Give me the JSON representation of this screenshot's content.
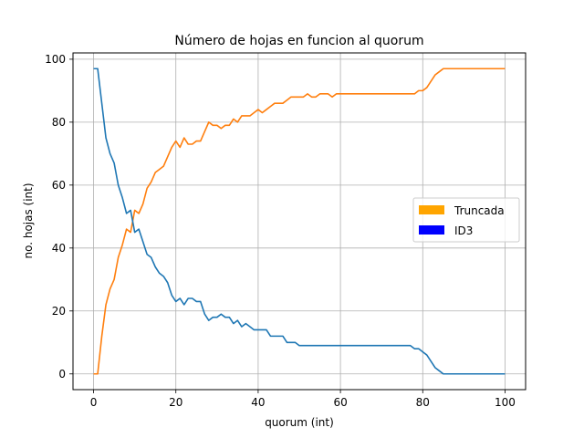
{
  "chart_data": {
    "type": "line",
    "title": "Número de hojas en funcion al quorum",
    "xlabel": "quorum (int)",
    "ylabel": "no. hojas (int)",
    "xlim": [
      -5,
      105
    ],
    "ylim": [
      -5,
      102
    ],
    "xticks": [
      0,
      20,
      40,
      60,
      80,
      100
    ],
    "yticks": [
      0,
      20,
      40,
      60,
      80,
      100
    ],
    "grid": true,
    "legend_position": "center-right",
    "legend": [
      {
        "label": "Truncada",
        "color": "#FFA500"
      },
      {
        "label": "ID3",
        "color": "#0000FF"
      }
    ],
    "x": [
      0,
      1,
      2,
      3,
      4,
      5,
      6,
      7,
      8,
      9,
      10,
      11,
      12,
      13,
      14,
      15,
      16,
      17,
      18,
      19,
      20,
      21,
      22,
      23,
      24,
      25,
      26,
      27,
      28,
      29,
      30,
      31,
      32,
      33,
      34,
      35,
      36,
      37,
      38,
      39,
      40,
      41,
      42,
      43,
      44,
      45,
      46,
      47,
      48,
      49,
      50,
      51,
      52,
      53,
      54,
      55,
      56,
      57,
      58,
      59,
      60,
      61,
      62,
      63,
      64,
      65,
      66,
      67,
      68,
      69,
      70,
      71,
      72,
      73,
      74,
      75,
      76,
      77,
      78,
      79,
      80,
      81,
      82,
      83,
      84,
      85,
      86,
      87,
      88,
      89,
      90,
      91,
      92,
      93,
      94,
      95,
      96,
      97,
      98,
      99,
      100
    ],
    "series": [
      {
        "color": "#ff7f0e",
        "values": [
          0,
          0,
          12,
          22,
          27,
          30,
          37,
          41,
          46,
          45,
          52,
          51,
          54,
          59,
          61,
          64,
          65,
          66,
          69,
          72,
          74,
          72,
          75,
          73,
          73,
          74,
          74,
          77,
          80,
          79,
          79,
          78,
          79,
          79,
          81,
          80,
          82,
          82,
          82,
          83,
          84,
          83,
          84,
          85,
          86,
          86,
          86,
          87,
          88,
          88,
          88,
          88,
          89,
          88,
          88,
          89,
          89,
          89,
          88,
          89,
          89,
          89,
          89,
          89,
          89,
          89,
          89,
          89,
          89,
          89,
          89,
          89,
          89,
          89,
          89,
          89,
          89,
          89,
          89,
          90,
          90,
          91,
          93,
          95,
          96,
          97,
          97,
          97,
          97,
          97,
          97,
          97,
          97,
          97,
          97,
          97,
          97,
          97,
          97,
          97,
          97
        ]
      },
      {
        "color": "#1f77b4",
        "values": [
          97,
          97,
          86,
          75,
          70,
          67,
          60,
          56,
          51,
          52,
          45,
          46,
          42,
          38,
          37,
          34,
          32,
          31,
          29,
          25,
          23,
          24,
          22,
          24,
          24,
          23,
          23,
          19,
          17,
          18,
          18,
          19,
          18,
          18,
          16,
          17,
          15,
          16,
          15,
          14,
          14,
          14,
          14,
          12,
          12,
          12,
          12,
          10,
          10,
          10,
          9,
          9,
          9,
          9,
          9,
          9,
          9,
          9,
          9,
          9,
          9,
          9,
          9,
          9,
          9,
          9,
          9,
          9,
          9,
          9,
          9,
          9,
          9,
          9,
          9,
          9,
          9,
          9,
          8,
          8,
          7,
          6,
          4,
          2,
          1,
          0,
          0,
          0,
          0,
          0,
          0,
          0,
          0,
          0,
          0,
          0,
          0,
          0,
          0,
          0,
          0
        ]
      }
    ]
  }
}
